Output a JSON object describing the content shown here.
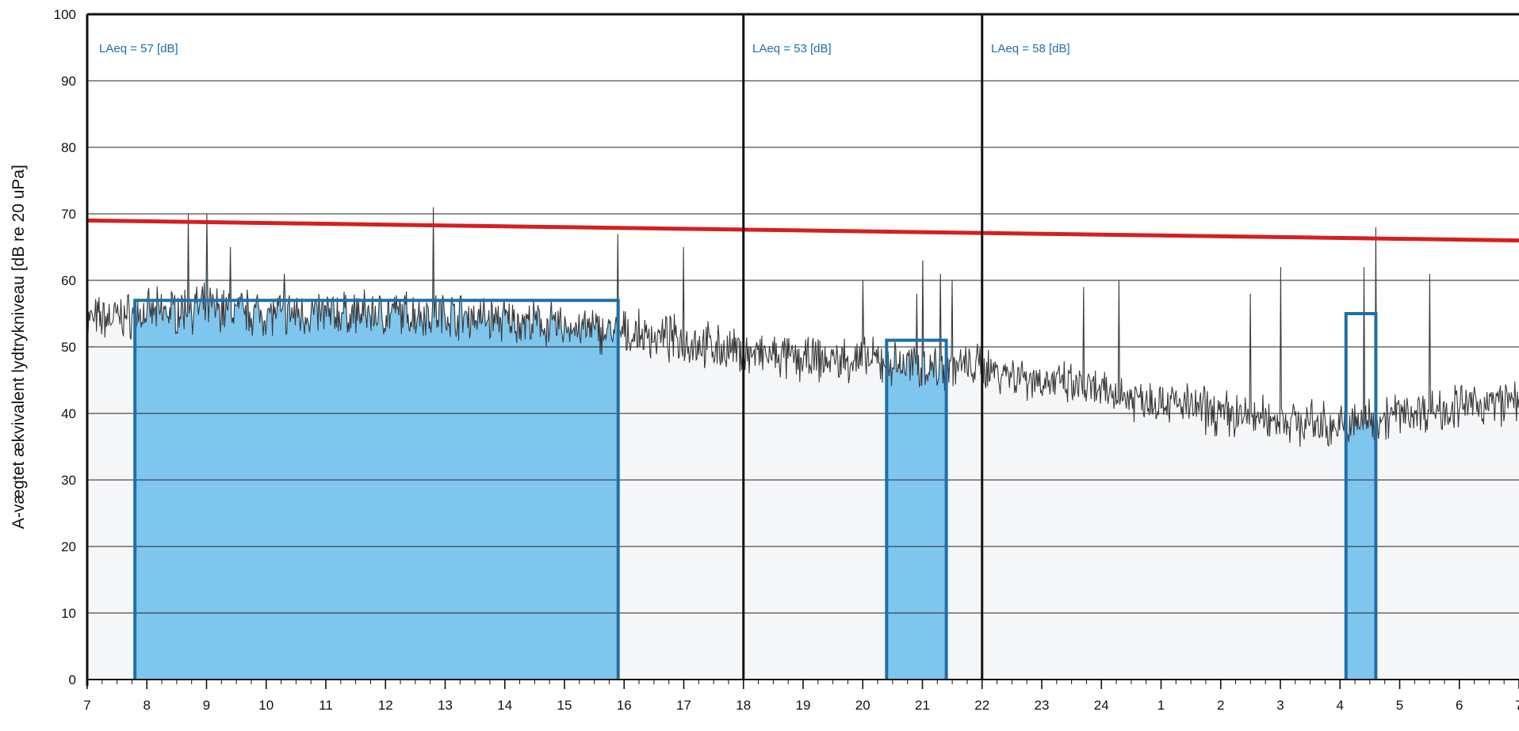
{
  "chart_data": {
    "type": "area",
    "ylabel": "A-vægtet ækvivalent lydtrykniveau [dB re 20 uPa]",
    "xlabel": "",
    "ylim": [
      0,
      100
    ],
    "yticks": [
      0,
      10,
      20,
      30,
      40,
      50,
      60,
      70,
      80,
      90,
      100
    ],
    "x_hour_range": [
      7,
      31
    ],
    "xtick_labels": [
      "7",
      "8",
      "9",
      "10",
      "11",
      "12",
      "13",
      "14",
      "15",
      "16",
      "17",
      "18",
      "19",
      "20",
      "21",
      "22",
      "23",
      "24",
      "1",
      "2",
      "3",
      "4",
      "5",
      "6",
      "7"
    ],
    "grid": true,
    "limit_line": {
      "value_start": 69,
      "value_end": 66,
      "color": "#d42020"
    },
    "period_dividers": [
      18,
      22
    ],
    "period_labels": [
      {
        "text": "LAeq = 57 [dB]",
        "period": "day"
      },
      {
        "text": "LAeq = 53 [dB]",
        "period": "evening"
      },
      {
        "text": "LAeq = 58 [dB]",
        "period": "night"
      }
    ],
    "highlight_windows": [
      {
        "x_start": 7.8,
        "x_end": 15.9,
        "level": 57
      },
      {
        "x_start": 20.4,
        "x_end": 21.4,
        "level": 51
      },
      {
        "x_start": 4.1,
        "x_end": 4.6,
        "level": 55
      }
    ],
    "level_profile": {
      "hours": [
        7,
        8,
        9,
        10,
        11,
        12,
        13,
        14,
        15,
        16,
        17,
        18,
        19,
        20,
        21,
        22,
        23,
        24,
        25,
        26,
        27,
        28,
        29,
        30,
        31
      ],
      "values": [
        54,
        55,
        56,
        55,
        55,
        55,
        55,
        54,
        53,
        52,
        51,
        49,
        48,
        48,
        47,
        47,
        45,
        43,
        42,
        40,
        39,
        38,
        40,
        41,
        42
      ]
    },
    "peaks": [
      {
        "x": 8.7,
        "value": 70
      },
      {
        "x": 9.0,
        "value": 70
      },
      {
        "x": 9.4,
        "value": 65
      },
      {
        "x": 10.3,
        "value": 61
      },
      {
        "x": 12.8,
        "value": 71
      },
      {
        "x": 15.9,
        "value": 67
      },
      {
        "x": 17.0,
        "value": 65
      },
      {
        "x": 20.0,
        "value": 60
      },
      {
        "x": 20.9,
        "value": 58
      },
      {
        "x": 21.0,
        "value": 63
      },
      {
        "x": 21.3,
        "value": 61
      },
      {
        "x": 21.5,
        "value": 60
      },
      {
        "x": 23.7,
        "value": 59
      },
      {
        "x": 24.3,
        "value": 60
      },
      {
        "x": 26.5,
        "value": 58
      },
      {
        "x": 27.0,
        "value": 62
      },
      {
        "x": 28.4,
        "value": 62
      },
      {
        "x": 28.6,
        "value": 68
      },
      {
        "x": 29.5,
        "value": 61
      }
    ],
    "colors": {
      "fill": "#7fc6ef",
      "window_border": "#1f6fa8",
      "trace": "#3a3a3a",
      "grid": "#222222"
    }
  }
}
